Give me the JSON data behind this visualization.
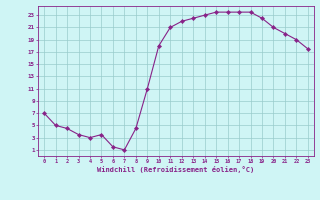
{
  "x": [
    0,
    1,
    2,
    3,
    4,
    5,
    6,
    7,
    8,
    9,
    10,
    11,
    12,
    13,
    14,
    15,
    16,
    17,
    18,
    19,
    20,
    21,
    22,
    23
  ],
  "y": [
    7,
    5,
    4.5,
    3.5,
    3,
    3.5,
    1.5,
    1,
    4.5,
    11,
    18,
    21,
    22,
    22.5,
    23,
    23.5,
    23.5,
    23.5,
    23.5,
    22.5,
    21,
    20,
    19,
    17.5
  ],
  "line_color": "#882288",
  "marker": "D",
  "marker_size": 2.2,
  "bg_color": "#cff5f5",
  "grid_color": "#99cccc",
  "xlabel": "Windchill (Refroidissement éolien,°C)",
  "ylabel_ticks": [
    1,
    3,
    5,
    7,
    9,
    11,
    13,
    15,
    17,
    19,
    21,
    23
  ],
  "xtick_labels": [
    "0",
    "1",
    "2",
    "3",
    "4",
    "5",
    "6",
    "7",
    "8",
    "9",
    "10",
    "11",
    "12",
    "13",
    "14",
    "15",
    "16",
    "17",
    "18",
    "19",
    "20",
    "21",
    "22",
    "23"
  ],
  "xlim": [
    -0.5,
    23.5
  ],
  "ylim": [
    0.0,
    24.5
  ]
}
